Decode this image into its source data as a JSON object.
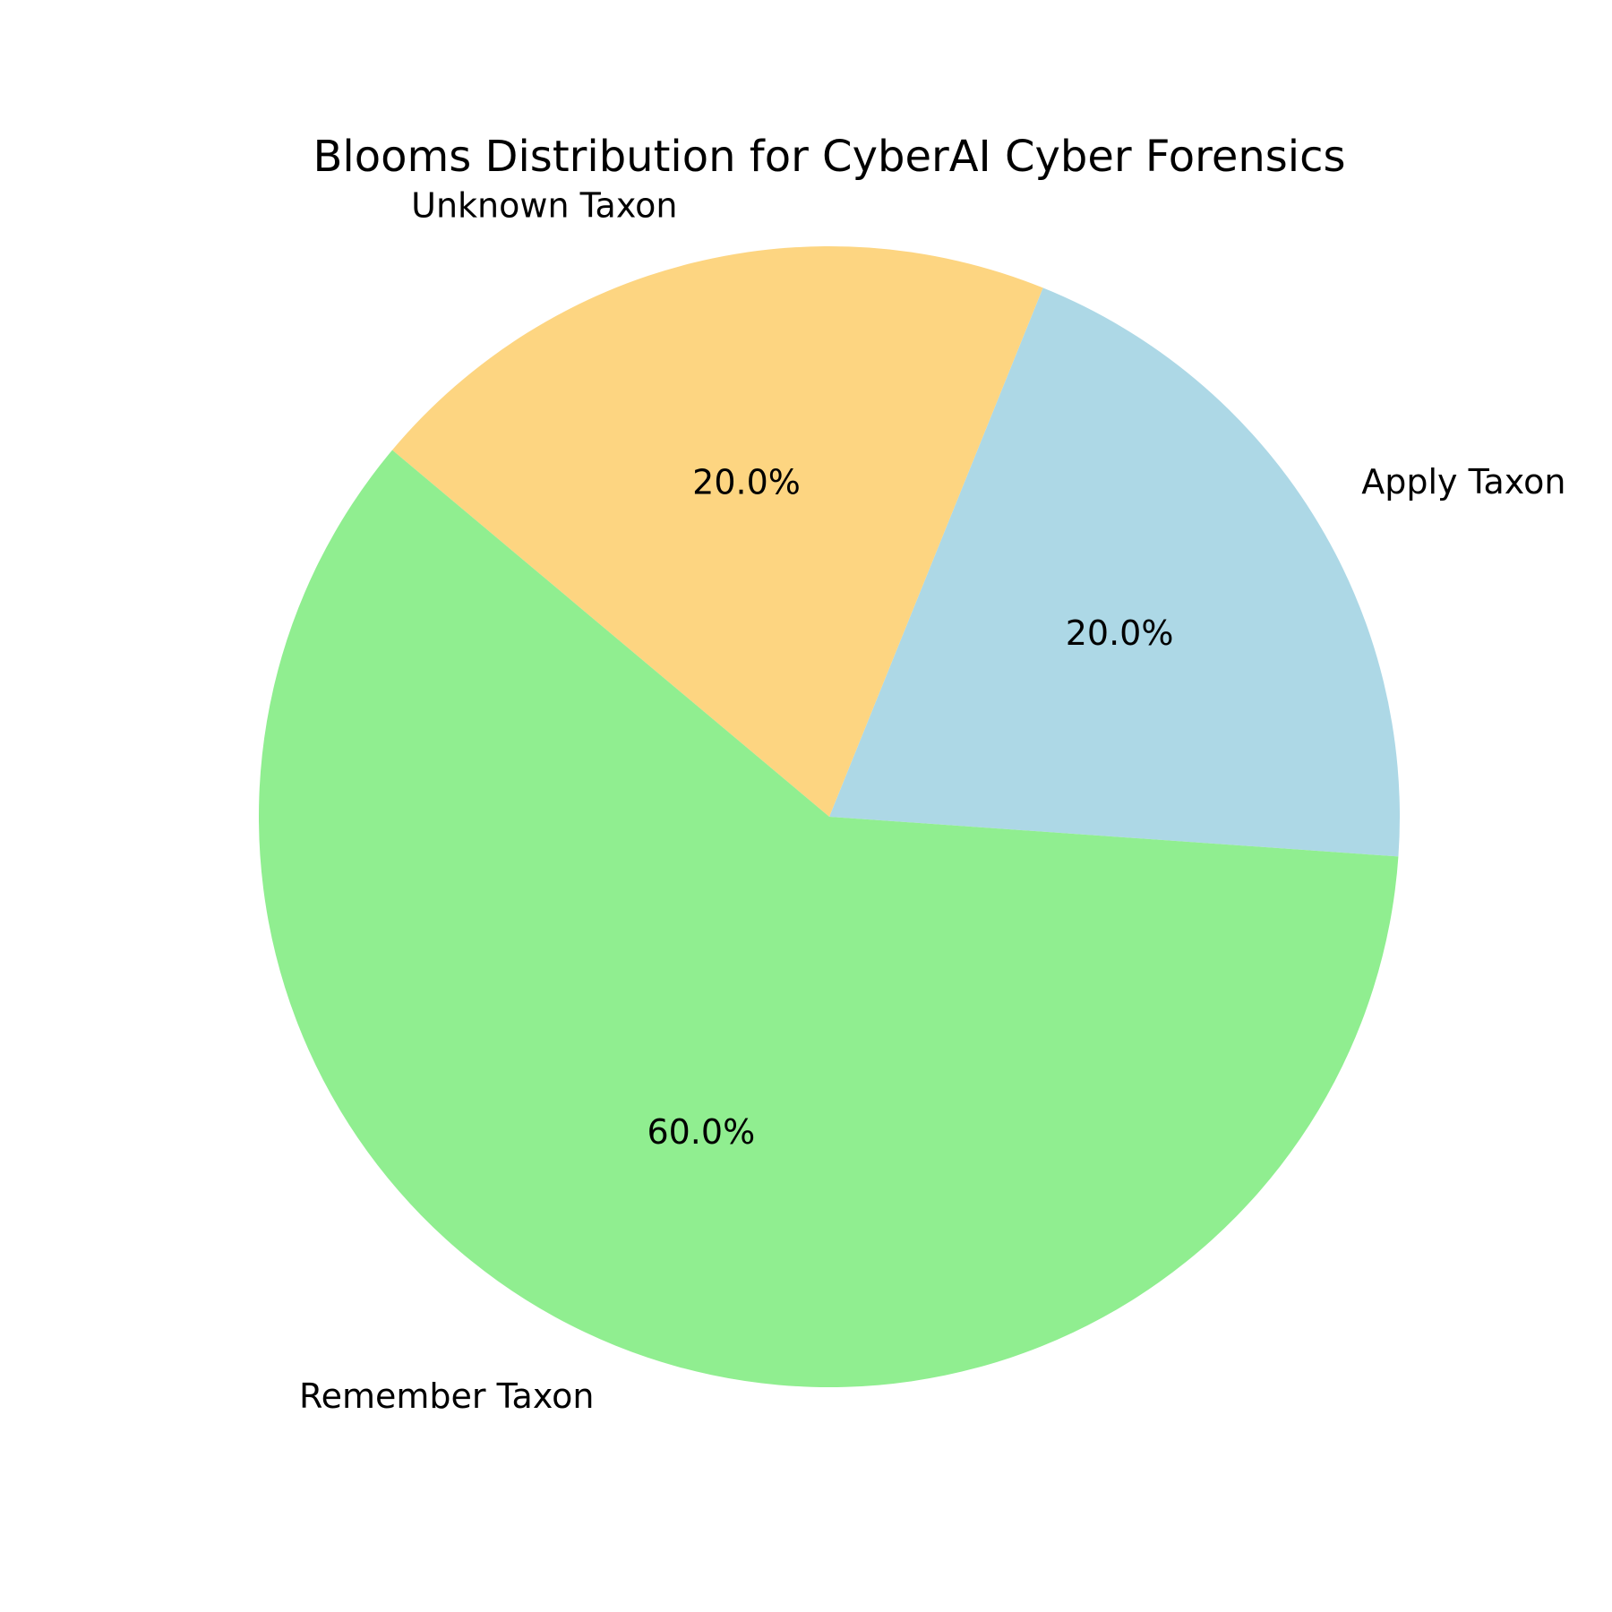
{
  "chart_data": {
    "type": "pie",
    "title": "Blooms Distribution for CyberAI Cyber Forensics",
    "slices": [
      {
        "label": "Apply Taxon",
        "value": 20.0,
        "pct_label": "20.0%",
        "color": "#add8e6"
      },
      {
        "label": "Unknown Taxon",
        "value": 20.0,
        "pct_label": "20.0%",
        "color": "#fdd581"
      },
      {
        "label": "Remember Taxon",
        "value": 60.0,
        "pct_label": "60.0%",
        "color": "#90ee90"
      }
    ]
  }
}
